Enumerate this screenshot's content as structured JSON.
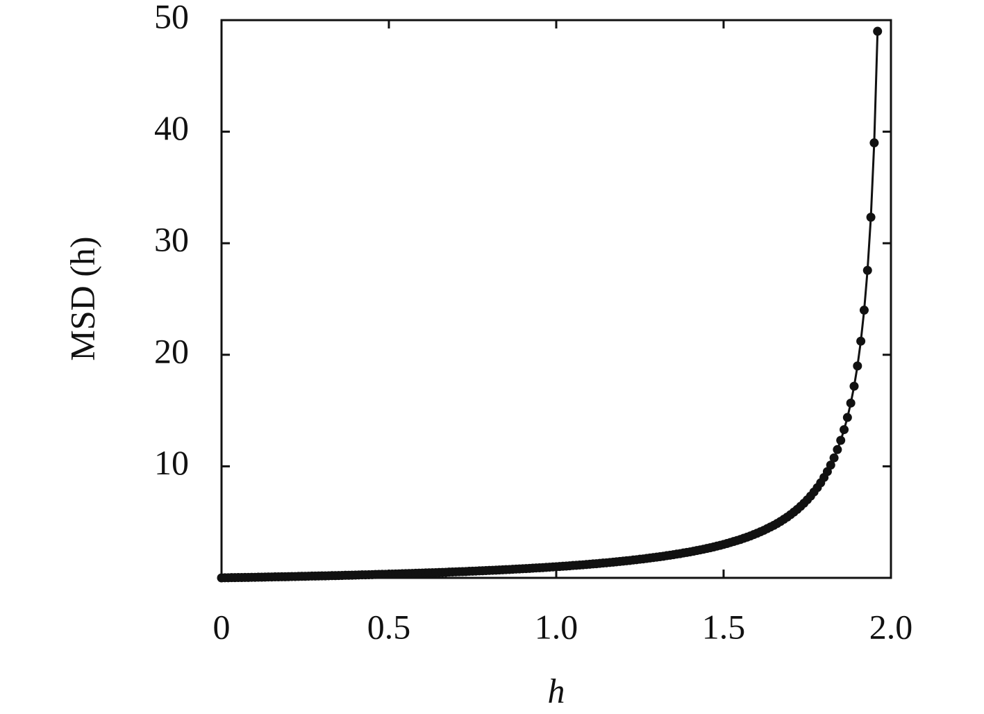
{
  "chart_data": {
    "type": "line",
    "xlabel": "h",
    "ylabel": "MSD (h)",
    "x": [
      0,
      0.01,
      0.02,
      0.03,
      0.04,
      0.05,
      0.06,
      0.07,
      0.08,
      0.09,
      0.1,
      0.11,
      0.12,
      0.13,
      0.14,
      0.15,
      0.16,
      0.17,
      0.18,
      0.19,
      0.2,
      0.21,
      0.22,
      0.23,
      0.24,
      0.25,
      0.26,
      0.27,
      0.28,
      0.29,
      0.3,
      0.31,
      0.32,
      0.33,
      0.34,
      0.35,
      0.36,
      0.37,
      0.38,
      0.39,
      0.4,
      0.41,
      0.42,
      0.43,
      0.44,
      0.45,
      0.46,
      0.47,
      0.48,
      0.49,
      0.5,
      0.51,
      0.52,
      0.53,
      0.54,
      0.55,
      0.56,
      0.57,
      0.58,
      0.59,
      0.6,
      0.61,
      0.62,
      0.63,
      0.64,
      0.65,
      0.66,
      0.67,
      0.68,
      0.69,
      0.7,
      0.71,
      0.72,
      0.73,
      0.74,
      0.75,
      0.76,
      0.77,
      0.78,
      0.79,
      0.8,
      0.81,
      0.82,
      0.83,
      0.84,
      0.85,
      0.86,
      0.87,
      0.88,
      0.89,
      0.9,
      0.91,
      0.92,
      0.93,
      0.94,
      0.95,
      0.96,
      0.97,
      0.98,
      0.99,
      1,
      1.01,
      1.02,
      1.03,
      1.04,
      1.05,
      1.06,
      1.07,
      1.08,
      1.09,
      1.1,
      1.11,
      1.12,
      1.13,
      1.14,
      1.15,
      1.16,
      1.17,
      1.18,
      1.19,
      1.2,
      1.21,
      1.22,
      1.23,
      1.24,
      1.25,
      1.26,
      1.27,
      1.28,
      1.29,
      1.3,
      1.31,
      1.32,
      1.33,
      1.34,
      1.35,
      1.36,
      1.37,
      1.38,
      1.39,
      1.4,
      1.41,
      1.42,
      1.43,
      1.44,
      1.45,
      1.46,
      1.47,
      1.48,
      1.49,
      1.5,
      1.51,
      1.52,
      1.53,
      1.54,
      1.55,
      1.56,
      1.57,
      1.58,
      1.59,
      1.6,
      1.61,
      1.62,
      1.63,
      1.64,
      1.65,
      1.66,
      1.67,
      1.68,
      1.69,
      1.7,
      1.71,
      1.72,
      1.73,
      1.74,
      1.75,
      1.76,
      1.77,
      1.78,
      1.79,
      1.8,
      1.81,
      1.82,
      1.83,
      1.84,
      1.85,
      1.86,
      1.87,
      1.88,
      1.89,
      1.9,
      1.91,
      1.92,
      1.93,
      1.94,
      1.95,
      1.96
    ],
    "series": [
      {
        "color": "#111111",
        "values": [
          0,
          0.01,
          0.01,
          0.02,
          0.02,
          0.03,
          0.03,
          0.04,
          0.04,
          0.05,
          0.05,
          0.06,
          0.06,
          0.07,
          0.08,
          0.08,
          0.09,
          0.09,
          0.1,
          0.1,
          0.11,
          0.12,
          0.12,
          0.13,
          0.14,
          0.14,
          0.15,
          0.16,
          0.16,
          0.17,
          0.18,
          0.18,
          0.19,
          0.2,
          0.2,
          0.21,
          0.22,
          0.23,
          0.23,
          0.24,
          0.25,
          0.26,
          0.27,
          0.27,
          0.28,
          0.29,
          0.3,
          0.31,
          0.32,
          0.32,
          0.33,
          0.34,
          0.35,
          0.36,
          0.37,
          0.38,
          0.39,
          0.4,
          0.41,
          0.42,
          0.43,
          0.44,
          0.45,
          0.46,
          0.47,
          0.48,
          0.49,
          0.5,
          0.52,
          0.53,
          0.54,
          0.55,
          0.56,
          0.57,
          0.59,
          0.6,
          0.61,
          0.63,
          0.64,
          0.65,
          0.67,
          0.68,
          0.69,
          0.71,
          0.72,
          0.74,
          0.75,
          0.77,
          0.79,
          0.8,
          0.82,
          0.83,
          0.85,
          0.87,
          0.89,
          0.9,
          0.92,
          0.94,
          0.96,
          0.98,
          1,
          1.02,
          1.04,
          1.06,
          1.08,
          1.11,
          1.13,
          1.15,
          1.17,
          1.2,
          1.22,
          1.25,
          1.27,
          1.3,
          1.33,
          1.35,
          1.38,
          1.41,
          1.44,
          1.47,
          1.5,
          1.53,
          1.56,
          1.6,
          1.63,
          1.67,
          1.7,
          1.74,
          1.78,
          1.82,
          1.86,
          1.9,
          1.94,
          1.99,
          2.03,
          2.08,
          2.13,
          2.17,
          2.23,
          2.28,
          2.33,
          2.39,
          2.45,
          2.51,
          2.57,
          2.64,
          2.7,
          2.77,
          2.85,
          2.92,
          3,
          3.08,
          3.17,
          3.26,
          3.35,
          3.44,
          3.55,
          3.65,
          3.76,
          3.88,
          4,
          4.13,
          4.26,
          4.41,
          4.56,
          4.71,
          4.88,
          5.06,
          5.25,
          5.45,
          5.67,
          5.9,
          6.14,
          6.41,
          6.69,
          7,
          7.33,
          7.7,
          8.09,
          8.52,
          9,
          9.53,
          10.11,
          10.76,
          11.5,
          12.33,
          13.29,
          14.38,
          15.67,
          17.18,
          19,
          21.22,
          24,
          27.57,
          32.33,
          39,
          49
        ]
      }
    ],
    "xlim": [
      0,
      2
    ],
    "xticks": [
      0,
      0.5,
      {
        "value": 1,
        "label": "1.0"
      },
      1.5,
      {
        "value": 2,
        "label": "2.0"
      }
    ],
    "ylim": [
      0,
      50
    ],
    "yticks": [
      10,
      20,
      30,
      40,
      50
    ]
  }
}
